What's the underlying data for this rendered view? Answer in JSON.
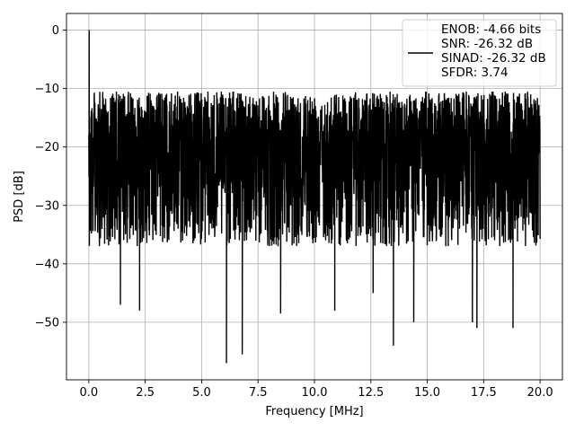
{
  "chart_data": {
    "type": "line",
    "title": "",
    "xlabel": "Frequency [MHz]",
    "ylabel": "PSD [dB]",
    "xlim": [
      -0.99,
      20.99
    ],
    "ylim": [
      -59.85,
      2.85
    ],
    "xticks": [
      0.0,
      2.5,
      5.0,
      7.5,
      10.0,
      12.5,
      15.0,
      17.5,
      20.0
    ],
    "xtick_labels": [
      "0.0",
      "2.5",
      "5.0",
      "7.5",
      "10.0",
      "12.5",
      "15.0",
      "17.5",
      "20.0"
    ],
    "yticks": [
      0,
      -10,
      -20,
      -30,
      -40,
      -50
    ],
    "ytick_labels": [
      "0",
      "−10",
      "−20",
      "−30",
      "−40",
      "−50"
    ],
    "grid": true,
    "legend_position": "top-right",
    "series": [
      {
        "name": "ENOB: -4.66 bits\nSNR: -26.32 dB\nSINAD: -26.32 dB\nSFDR: 3.74",
        "color": "#000000",
        "description_of_shape": "noise spectrum 0-20 MHz, peak 0 dB at 0 MHz, typical band -10 to -35 dB",
        "x_range": [
          0.0,
          20.0
        ],
        "peak": {
          "x": 0.0,
          "y": 0.0
        },
        "upper_envelope": -10.5,
        "lower_envelope": -35,
        "notable_minima": [
          {
            "x": 1.4,
            "y": -47
          },
          {
            "x": 2.25,
            "y": -48
          },
          {
            "x": 6.1,
            "y": -57
          },
          {
            "x": 6.8,
            "y": -55.5
          },
          {
            "x": 8.5,
            "y": -48.5
          },
          {
            "x": 10.9,
            "y": -48
          },
          {
            "x": 12.6,
            "y": -45
          },
          {
            "x": 13.5,
            "y": -54
          },
          {
            "x": 14.4,
            "y": -50
          },
          {
            "x": 17.0,
            "y": -50
          },
          {
            "x": 17.2,
            "y": -51
          },
          {
            "x": 18.8,
            "y": -51
          }
        ]
      }
    ],
    "legend_lines": [
      "ENOB: -4.66 bits",
      "SNR: -26.32 dB",
      "SINAD: -26.32 dB",
      "SFDR: 3.74"
    ]
  }
}
